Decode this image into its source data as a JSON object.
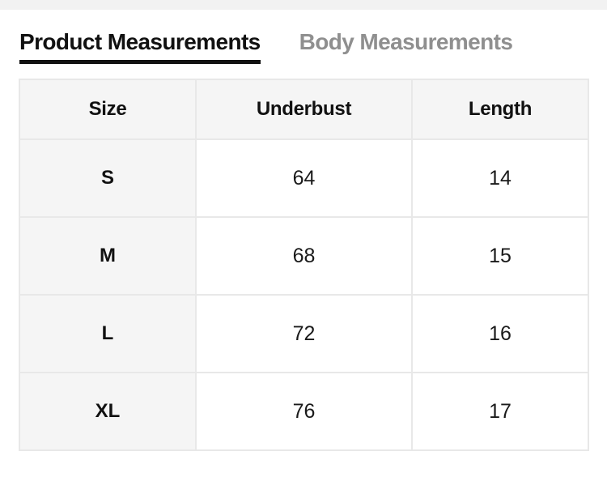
{
  "tabs": {
    "product": {
      "label": "Product Measurements",
      "active": true
    },
    "body": {
      "label": "Body Measurements",
      "active": false
    }
  },
  "table": {
    "headers": [
      "Size",
      "Underbust",
      "Length"
    ],
    "rows": [
      [
        "S",
        "64",
        "14"
      ],
      [
        "M",
        "68",
        "15"
      ],
      [
        "L",
        "72",
        "16"
      ],
      [
        "XL",
        "76",
        "17"
      ]
    ]
  },
  "colors": {
    "page_background": "#ffffff",
    "top_strip": "#f2f2f2",
    "active_tab_text": "#111111",
    "active_tab_underline": "#111111",
    "inactive_tab_text": "#8f8f8f",
    "header_background": "#f5f5f5",
    "size_column_background": "#f5f5f5",
    "cell_border": "#e8e8e8",
    "cell_text": "#1a1a1a"
  }
}
